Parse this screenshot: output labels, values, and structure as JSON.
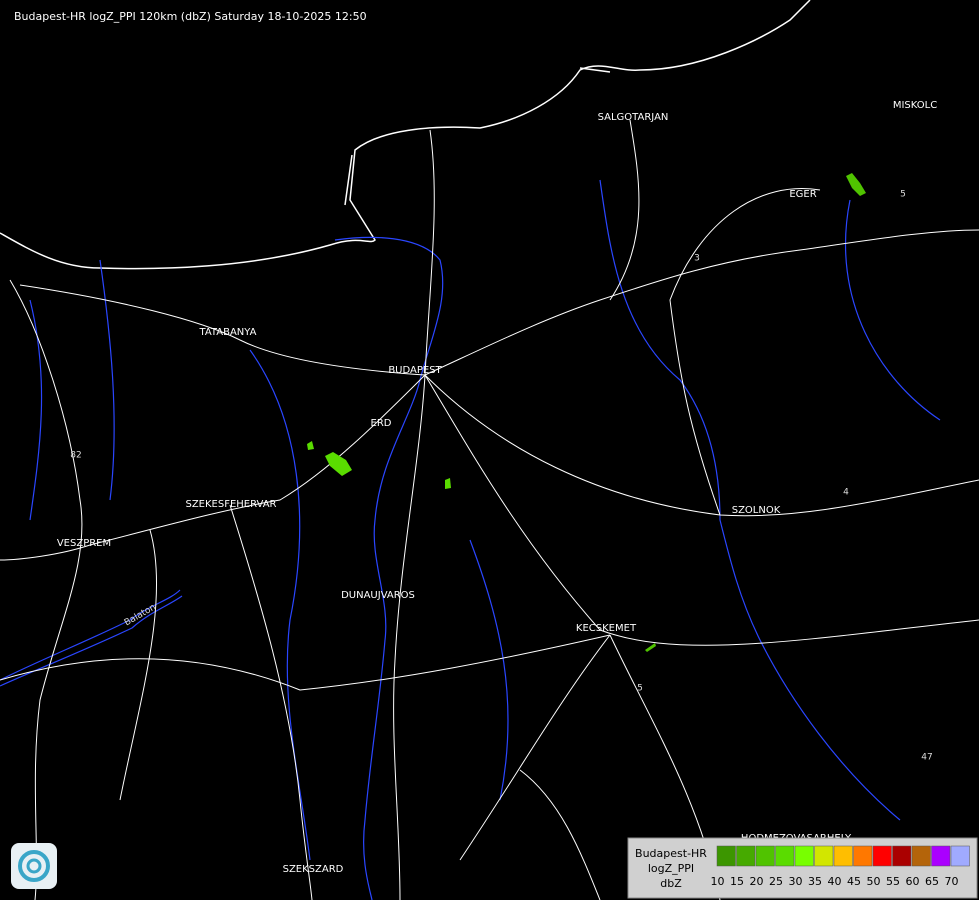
{
  "header": {
    "title": "Budapest-HR logZ_PPI 120km (dbZ) Saturday 18-10-2025 12:50"
  },
  "cities": [
    "SALGOTARJAN",
    "EGER",
    "MISKOLC",
    "TATABANYA",
    "BUDAPEST",
    "ERD",
    "SZEKESFEHERVAR",
    "VESZPREM",
    "SZOLNOK",
    "DUNAUJVAROS",
    "KECSKEMET",
    "HODMEZOVASARHELY",
    "SZEKSZARD"
  ],
  "road_numbers": [
    "3",
    "5",
    "82",
    "4",
    "47",
    "5"
  ],
  "lake": "Balaton",
  "legend": {
    "lines": [
      "Budapest-HR",
      "logZ_PPI",
      "dbZ"
    ],
    "steps": [
      {
        "value": 10,
        "color": "#3c9600"
      },
      {
        "value": 15,
        "color": "#46aa00"
      },
      {
        "value": 20,
        "color": "#50c300"
      },
      {
        "value": 25,
        "color": "#5adc00"
      },
      {
        "value": 30,
        "color": "#78ff00"
      },
      {
        "value": 35,
        "color": "#d2e600"
      },
      {
        "value": 40,
        "color": "#ffbe00"
      },
      {
        "value": 45,
        "color": "#ff7800"
      },
      {
        "value": 50,
        "color": "#ff0000"
      },
      {
        "value": 55,
        "color": "#aa0000"
      },
      {
        "value": 60,
        "color": "#b4640a"
      },
      {
        "value": 65,
        "color": "#aa00ff"
      },
      {
        "value": 70,
        "color": "#a0aaff"
      }
    ]
  }
}
